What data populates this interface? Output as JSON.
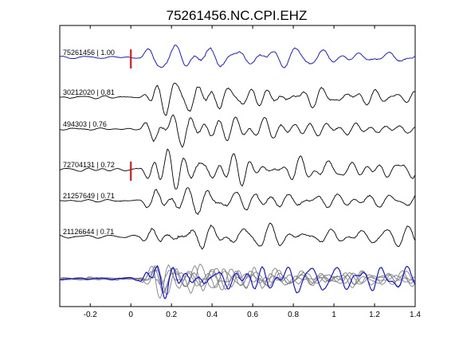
{
  "chart_data": {
    "type": "line",
    "title": "75261456.NC.CPI.EHZ",
    "xlabel": "",
    "ylabel": "",
    "xlim": [
      -0.35,
      1.4
    ],
    "xticks": [
      -0.2,
      0,
      0.2,
      0.4,
      0.6,
      0.8,
      1,
      1.2,
      1.4
    ],
    "xtick_labels": [
      "-0.2",
      "0",
      "0.2",
      "0.4",
      "0.6",
      "0.8",
      "1",
      "1.2",
      "1.4"
    ],
    "grid": false,
    "colors": {
      "reference": "#0000ff",
      "other": "#000000",
      "stack": "#808080",
      "pick": "#ff0000"
    },
    "series": [
      {
        "label": "75261456 | 1.00",
        "color": "#0000ff",
        "pick_at": 0.0
      },
      {
        "label": "30212020 | 0.81",
        "color": "#000000"
      },
      {
        "label": "494303 | 0.76",
        "color": "#000000"
      },
      {
        "label": "72704131 | 0.72",
        "color": "#000000",
        "pick_at": 0.0
      },
      {
        "label": "21257649 | 0.71",
        "color": "#000000"
      },
      {
        "label": "21126644 | 0.71",
        "color": "#000000"
      }
    ],
    "overlay": {
      "traces": 6,
      "highlight_color": "#0000ff",
      "others_color": "#808080"
    }
  }
}
